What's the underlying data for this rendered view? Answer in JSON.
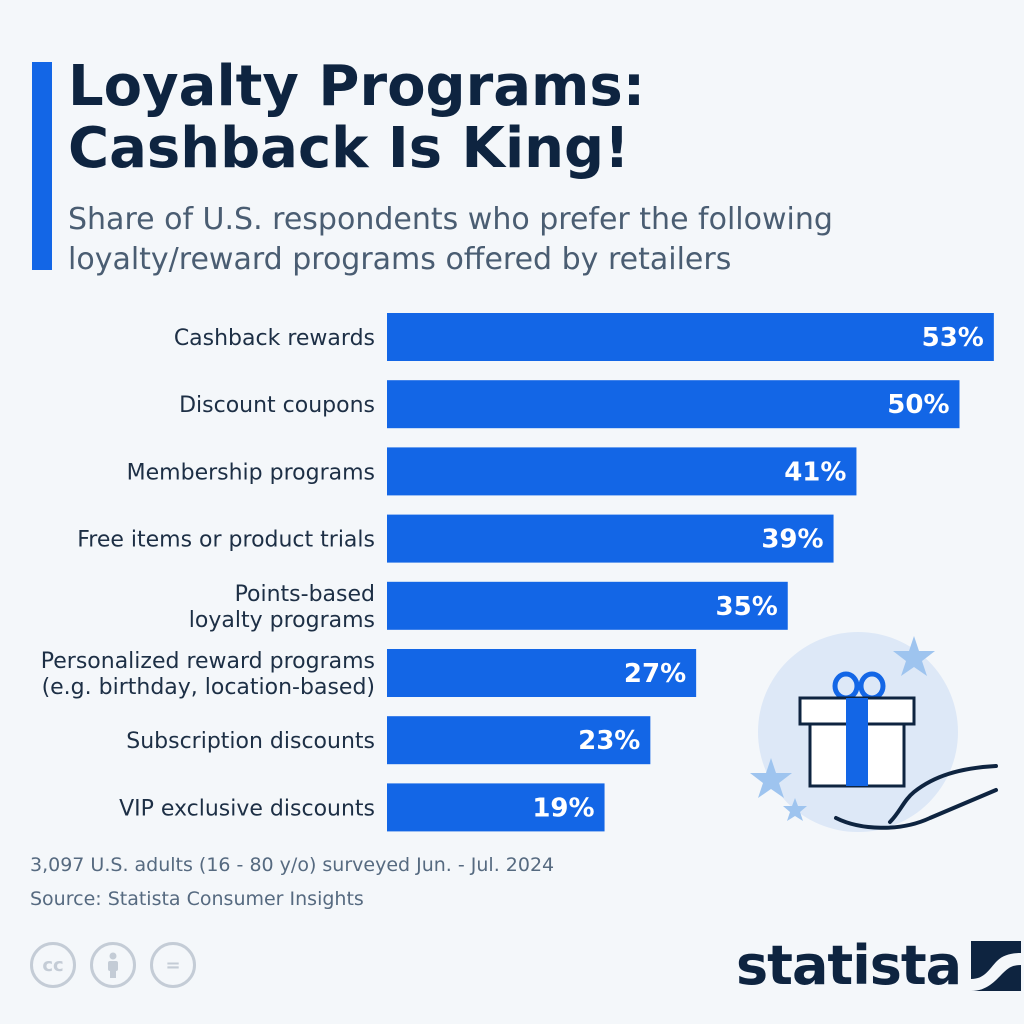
{
  "header": {
    "title_line1": "Loyalty Programs:",
    "title_line2": "Cashback Is King!",
    "subtitle_line1": "Share of U.S. respondents who prefer the following",
    "subtitle_line2": "loyalty/reward programs offered by retailers"
  },
  "chart_data": {
    "type": "bar",
    "orientation": "horizontal",
    "categories": [
      [
        "Cashback rewards"
      ],
      [
        "Discount coupons"
      ],
      [
        "Membership programs"
      ],
      [
        "Free items or product trials"
      ],
      [
        "Points-based",
        "loyalty programs"
      ],
      [
        "Personalized reward programs",
        "(e.g. birthday, location-based)"
      ],
      [
        "Subscription discounts"
      ],
      [
        "VIP exclusive discounts"
      ]
    ],
    "values": [
      53,
      50,
      41,
      39,
      35,
      27,
      23,
      19
    ],
    "value_labels": [
      "53%",
      "50%",
      "41%",
      "39%",
      "35%",
      "27%",
      "23%",
      "19%"
    ],
    "unit": "%",
    "grid": false,
    "legend": "none"
  },
  "colors": {
    "bar": "#1366e6",
    "title": "#0e2440",
    "background": "#f4f7fa",
    "illustration_circle": "#dde8f7",
    "star": "#9ec4ef"
  },
  "illustration": {
    "icons": [
      "gift-box-icon",
      "open-hand-icon",
      "star-icon"
    ]
  },
  "footer": {
    "note": "3,097 U.S. adults (16 - 80 y/o) surveyed Jun. - Jul. 2024",
    "source": "Source: Statista Consumer Insights",
    "license_icons": [
      "cc-icon",
      "attribution-icon",
      "no-derivatives-icon"
    ],
    "brand": "statista"
  }
}
